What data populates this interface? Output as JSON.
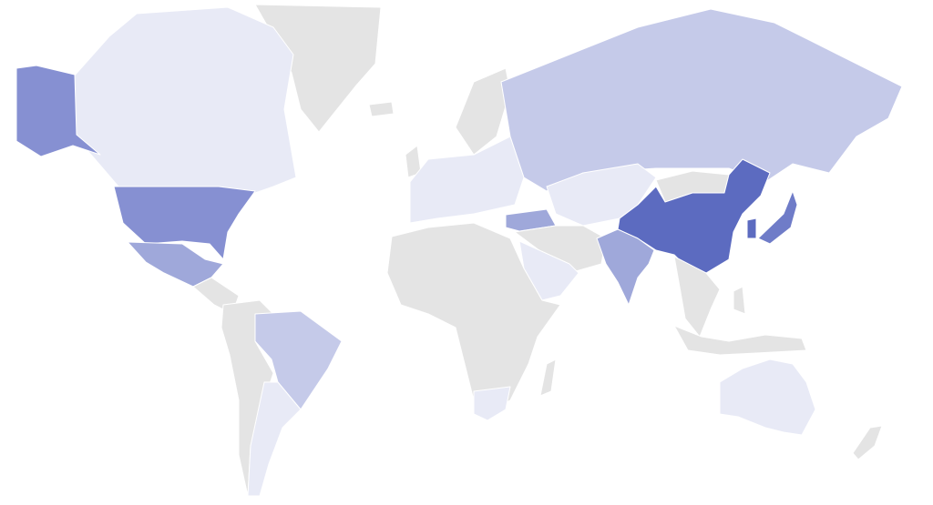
{
  "map": {
    "type": "choropleth",
    "background": "#ffffff",
    "no_data_color": "#e4e4e4",
    "scale_colors": [
      "#e8eaf6",
      "#c5cae9",
      "#9fa8da",
      "#7986cb",
      "#5c6bc0"
    ],
    "regions": {
      "greenland": "#e4e4e4",
      "canada": "#e8eaf6",
      "alaska": "#8690d2",
      "usa": "#8690d2",
      "mexico": "#9fa8da",
      "central_america": "#e4e4e4",
      "south_america": "#e4e4e4",
      "southern_cone": "#e8eaf6",
      "brazil": "#c5cae9",
      "europe": "#e8eaf6",
      "scandinavia": "#e4e4e4",
      "russia": "#c5cae9",
      "turkey": "#9fa8da",
      "middle_east": "#e4e4e4",
      "arabia": "#e8eaf6",
      "central_asia": "#e8eaf6",
      "africa": "#e4e4e4",
      "south_africa": "#e8eaf6",
      "madagascar": "#e4e4e4",
      "mongolia": "#e4e4e4",
      "china": "#5c6bc0",
      "korea": "#5c6bc0",
      "japan": "#6f7cc8",
      "india": "#9fa8da",
      "southeast_asia": "#e4e4e4",
      "indonesia": "#e4e4e4",
      "philippines": "#e4e4e4",
      "australia": "#e8eaf6",
      "new_zealand": "#e4e4e4",
      "iceland": "#e4e4e4",
      "uk": "#e4e4e4"
    }
  }
}
